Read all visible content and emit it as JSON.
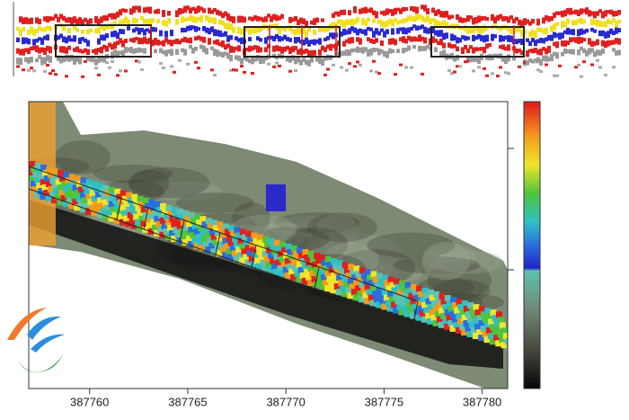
{
  "chart_data": {
    "type": "heatmap",
    "xlim": [
      387756.9,
      387781.3
    ],
    "xticks": [
      387760,
      387765,
      387770,
      387775,
      387780
    ]
  }
}
